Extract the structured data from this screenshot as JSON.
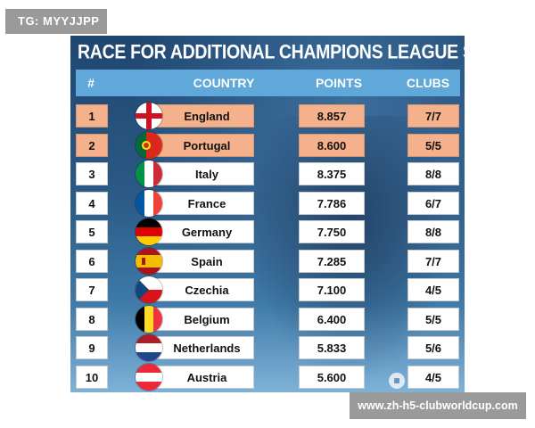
{
  "tag": {
    "text": "TG: MYYJJPP"
  },
  "watermark": {
    "text": "www.zh-h5-clubworldcup.com"
  },
  "table": {
    "title": "RACE FOR ADDITIONAL CHAMPIONS LEAGUE SPOTS",
    "headers": {
      "rank": "#",
      "country": "COUNTRY",
      "points": "POINTS",
      "clubs": "CLUBS"
    },
    "highlight_color": "#f4b18b",
    "header_color": "#5fa8d9",
    "rows": [
      {
        "rank": "1",
        "country": "England",
        "points": "8.857",
        "clubs": "7/7",
        "flag": "england-flag-icon",
        "highlighted": true
      },
      {
        "rank": "2",
        "country": "Portugal",
        "points": "8.600",
        "clubs": "5/5",
        "flag": "portugal-flag-icon",
        "highlighted": true
      },
      {
        "rank": "3",
        "country": "Italy",
        "points": "8.375",
        "clubs": "8/8",
        "flag": "italy-flag-icon",
        "highlighted": false
      },
      {
        "rank": "4",
        "country": "France",
        "points": "7.786",
        "clubs": "6/7",
        "flag": "france-flag-icon",
        "highlighted": false
      },
      {
        "rank": "5",
        "country": "Germany",
        "points": "7.750",
        "clubs": "8/8",
        "flag": "germany-flag-icon",
        "highlighted": false
      },
      {
        "rank": "6",
        "country": "Spain",
        "points": "7.285",
        "clubs": "7/7",
        "flag": "spain-flag-icon",
        "highlighted": false
      },
      {
        "rank": "7",
        "country": "Czechia",
        "points": "7.100",
        "clubs": "4/5",
        "flag": "czechia-flag-icon",
        "highlighted": false
      },
      {
        "rank": "8",
        "country": "Belgium",
        "points": "6.400",
        "clubs": "5/5",
        "flag": "belgium-flag-icon",
        "highlighted": false
      },
      {
        "rank": "9",
        "country": "Netherlands",
        "points": "5.833",
        "clubs": "5/6",
        "flag": "netherlands-flag-icon",
        "highlighted": false
      },
      {
        "rank": "10",
        "country": "Austria",
        "points": "5.600",
        "clubs": "4/5",
        "flag": "austria-flag-icon",
        "highlighted": false
      }
    ]
  }
}
